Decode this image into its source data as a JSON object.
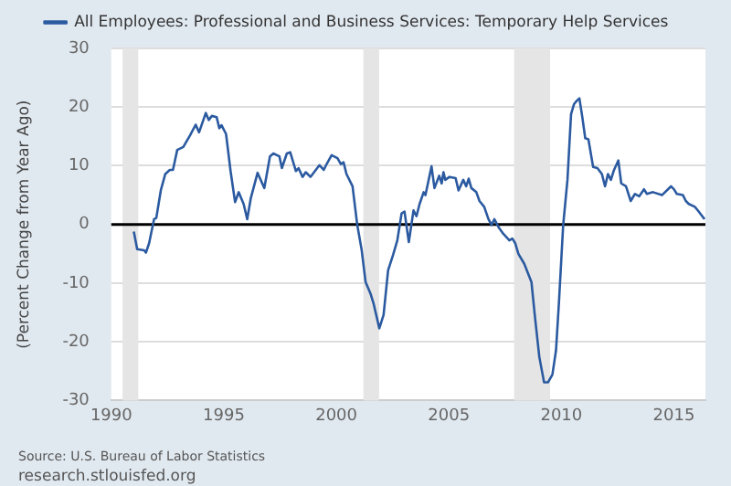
{
  "chart_data": {
    "type": "line",
    "ylabel": "(Percent Change from Year Ago)",
    "series": [
      {
        "name": "All Employees: Professional and Business Services: Temporary Help Services",
        "color": "#2b5aa0",
        "x": [
          1991.0,
          1991.15,
          1991.46,
          1991.54,
          1991.68,
          1991.9,
          1992.0,
          1992.2,
          1992.4,
          1992.6,
          1992.74,
          1992.93,
          1993.2,
          1993.5,
          1993.75,
          1993.9,
          1994.2,
          1994.33,
          1994.47,
          1994.68,
          1994.8,
          1994.9,
          1995.1,
          1995.3,
          1995.5,
          1995.66,
          1995.88,
          1996.04,
          1996.2,
          1996.5,
          1996.8,
          1997.05,
          1997.2,
          1997.47,
          1997.58,
          1997.8,
          1997.95,
          1998.2,
          1998.32,
          1998.5,
          1998.64,
          1998.85,
          1999.25,
          1999.44,
          1999.57,
          1999.79,
          2000.05,
          2000.2,
          2000.32,
          2000.45,
          2000.72,
          2000.93,
          2001.12,
          2001.3,
          2001.52,
          2001.65,
          2001.91,
          2002.1,
          2002.3,
          2002.52,
          2002.71,
          2002.9,
          2003.03,
          2003.22,
          2003.43,
          2003.56,
          2003.7,
          2003.88,
          2003.96,
          2004.23,
          2004.36,
          2004.57,
          2004.68,
          2004.76,
          2004.84,
          2005.03,
          2005.3,
          2005.43,
          2005.64,
          2005.77,
          2005.88,
          2006.0,
          2006.22,
          2006.36,
          2006.57,
          2006.76,
          2006.9,
          2007.02,
          2007.23,
          2007.42,
          2007.69,
          2007.82,
          2007.95,
          2008.09,
          2008.35,
          2008.67,
          2008.83,
          2009.02,
          2009.23,
          2009.41,
          2009.6,
          2009.76,
          2009.89,
          2010.08,
          2010.27,
          2010.43,
          2010.56,
          2010.69,
          2010.8,
          2010.93,
          2011.06,
          2011.2,
          2011.41,
          2011.6,
          2011.8,
          2011.94,
          2012.07,
          2012.2,
          2012.34,
          2012.53,
          2012.66,
          2012.87,
          2013.08,
          2013.27,
          2013.46,
          2013.67,
          2013.8,
          2014.07,
          2014.47,
          2014.87,
          2015.0,
          2015.13,
          2015.4,
          2015.53,
          2015.66,
          2015.93,
          2016.06,
          2016.2,
          2016.36
        ],
        "values": [
          -1.2,
          -4.2,
          -4.4,
          -4.8,
          -3.2,
          0.9,
          1.1,
          5.8,
          8.6,
          9.3,
          9.3,
          12.7,
          13.2,
          15.2,
          17.0,
          15.7,
          19.0,
          17.8,
          18.5,
          18.3,
          16.4,
          16.9,
          15.4,
          9.1,
          3.8,
          5.5,
          3.5,
          0.9,
          4.5,
          8.8,
          6.2,
          11.6,
          12.1,
          11.6,
          9.6,
          12.1,
          12.3,
          9.1,
          9.6,
          8.1,
          8.9,
          8.1,
          10.1,
          9.3,
          10.3,
          11.8,
          11.3,
          10.3,
          10.6,
          8.6,
          6.5,
          -0.1,
          -4.2,
          -9.8,
          -11.8,
          -13.4,
          -17.7,
          -15.4,
          -7.8,
          -5.2,
          -2.7,
          1.9,
          2.2,
          -3.0,
          2.4,
          1.4,
          3.5,
          5.5,
          5.0,
          9.9,
          6.2,
          8.3,
          7.0,
          8.9,
          7.6,
          8.1,
          7.9,
          5.8,
          7.6,
          6.5,
          7.8,
          6.2,
          5.5,
          4.0,
          3.0,
          0.9,
          -0.1,
          0.9,
          -0.6,
          -1.6,
          -2.7,
          -2.4,
          -3.2,
          -5.0,
          -6.7,
          -9.8,
          -15.9,
          -22.6,
          -26.9,
          -26.9,
          -25.6,
          -21.5,
          -13.4,
          -0.1,
          7.6,
          18.8,
          20.5,
          21.1,
          21.5,
          18.3,
          14.7,
          14.5,
          9.8,
          9.6,
          8.6,
          6.5,
          8.6,
          7.6,
          9.3,
          10.9,
          7.0,
          6.5,
          4.0,
          5.2,
          4.8,
          6.0,
          5.2,
          5.5,
          5.0,
          6.5,
          6.0,
          5.2,
          5.0,
          4.0,
          3.5,
          3.0,
          2.4,
          1.7,
          0.9
        ]
      }
    ],
    "xlim": [
      1990,
      2016.4
    ],
    "xticks": [
      1990,
      1995,
      2000,
      2005,
      2010,
      2015
    ],
    "ylim": [
      -30,
      30
    ],
    "yticks": [
      -30,
      -20,
      -10,
      0,
      10,
      20,
      30
    ],
    "grid": "y",
    "legend": "top",
    "marker": "none",
    "line_style": "solid",
    "ref_lines": [
      {
        "axis": "y",
        "value": 0,
        "color": "#000000"
      }
    ],
    "bands": [
      {
        "axis": "x",
        "from": 1990.5,
        "to": 1991.2,
        "color": "#e5e5e5"
      },
      {
        "axis": "x",
        "from": 2001.2,
        "to": 2001.9,
        "color": "#e5e5e5"
      },
      {
        "axis": "x",
        "from": 2007.9,
        "to": 2009.5,
        "color": "#e5e5e5"
      }
    ],
    "annotations": [
      "Source: U.S. Bureau of Labor Statistics",
      "research.stlouisfed.org"
    ]
  }
}
